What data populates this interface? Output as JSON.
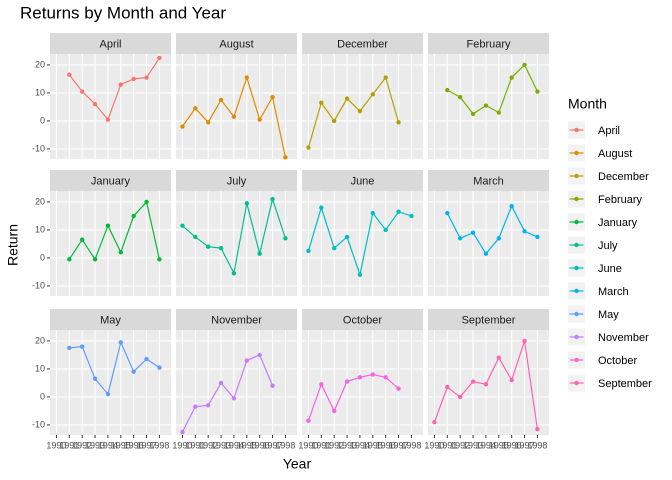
{
  "chart_data": {
    "type": "line",
    "title": "Returns by Month and Year",
    "x_label": "Year",
    "y_label": "Return",
    "legend_title": "Month",
    "x": [
      1990,
      1991,
      1992,
      1993,
      1994,
      1995,
      1996,
      1997,
      1998
    ],
    "xlim": [
      1989.5,
      1998.9
    ],
    "xticks": [
      1990,
      1991,
      1992,
      1993,
      1994,
      1995,
      1996,
      1997,
      1998
    ],
    "ylim": [
      -13.6,
      23.9
    ],
    "yticks": [
      -10,
      0,
      10,
      20
    ],
    "grid": true,
    "facet_columns": 4,
    "legend_position": "right",
    "series": [
      {
        "name": "April",
        "color": "#F8766D",
        "values": [
          null,
          16.5,
          10.5,
          6,
          0.5,
          13,
          15,
          15.5,
          22.5
        ]
      },
      {
        "name": "August",
        "color": "#DE8C00",
        "values": [
          -2,
          4.5,
          -0.5,
          7.5,
          1.5,
          15.5,
          0.5,
          8.5,
          -13
        ]
      },
      {
        "name": "December",
        "color": "#B79F00",
        "values": [
          -9.5,
          6.5,
          0,
          8,
          3.5,
          9.5,
          15.5,
          -0.5,
          null
        ]
      },
      {
        "name": "February",
        "color": "#7CAE00",
        "values": [
          null,
          11,
          8.5,
          2.5,
          5.5,
          3,
          15.5,
          20,
          10.5
        ]
      },
      {
        "name": "January",
        "color": "#00BA38",
        "values": [
          null,
          -0.5,
          6.5,
          -0.5,
          11.5,
          2,
          15,
          20,
          -0.5
        ]
      },
      {
        "name": "July",
        "color": "#00C08B",
        "values": [
          11.5,
          7.5,
          4,
          3.5,
          -5.5,
          19.5,
          1.5,
          21,
          7
        ]
      },
      {
        "name": "June",
        "color": "#00BFC4",
        "values": [
          2.5,
          18,
          3.5,
          7.5,
          -6,
          16,
          10,
          16.5,
          15
        ]
      },
      {
        "name": "March",
        "color": "#00B4F0",
        "values": [
          null,
          16,
          7,
          9,
          1.5,
          7,
          18.5,
          9.5,
          7.5
        ]
      },
      {
        "name": "May",
        "color": "#619CFF",
        "values": [
          null,
          17.5,
          18,
          6.5,
          1,
          19.5,
          9,
          13.5,
          10.5
        ]
      },
      {
        "name": "November",
        "color": "#C77CFF",
        "values": [
          -12.5,
          -3.5,
          -3,
          5,
          -0.5,
          13,
          15,
          4,
          null
        ]
      },
      {
        "name": "October",
        "color": "#F564E3",
        "values": [
          -8.5,
          4.5,
          -5,
          5.5,
          7,
          8,
          7,
          3,
          null
        ]
      },
      {
        "name": "September",
        "color": "#FF64B0",
        "values": [
          -9,
          3.5,
          0,
          5.5,
          4.5,
          14,
          6,
          20,
          -11.5
        ]
      }
    ]
  }
}
